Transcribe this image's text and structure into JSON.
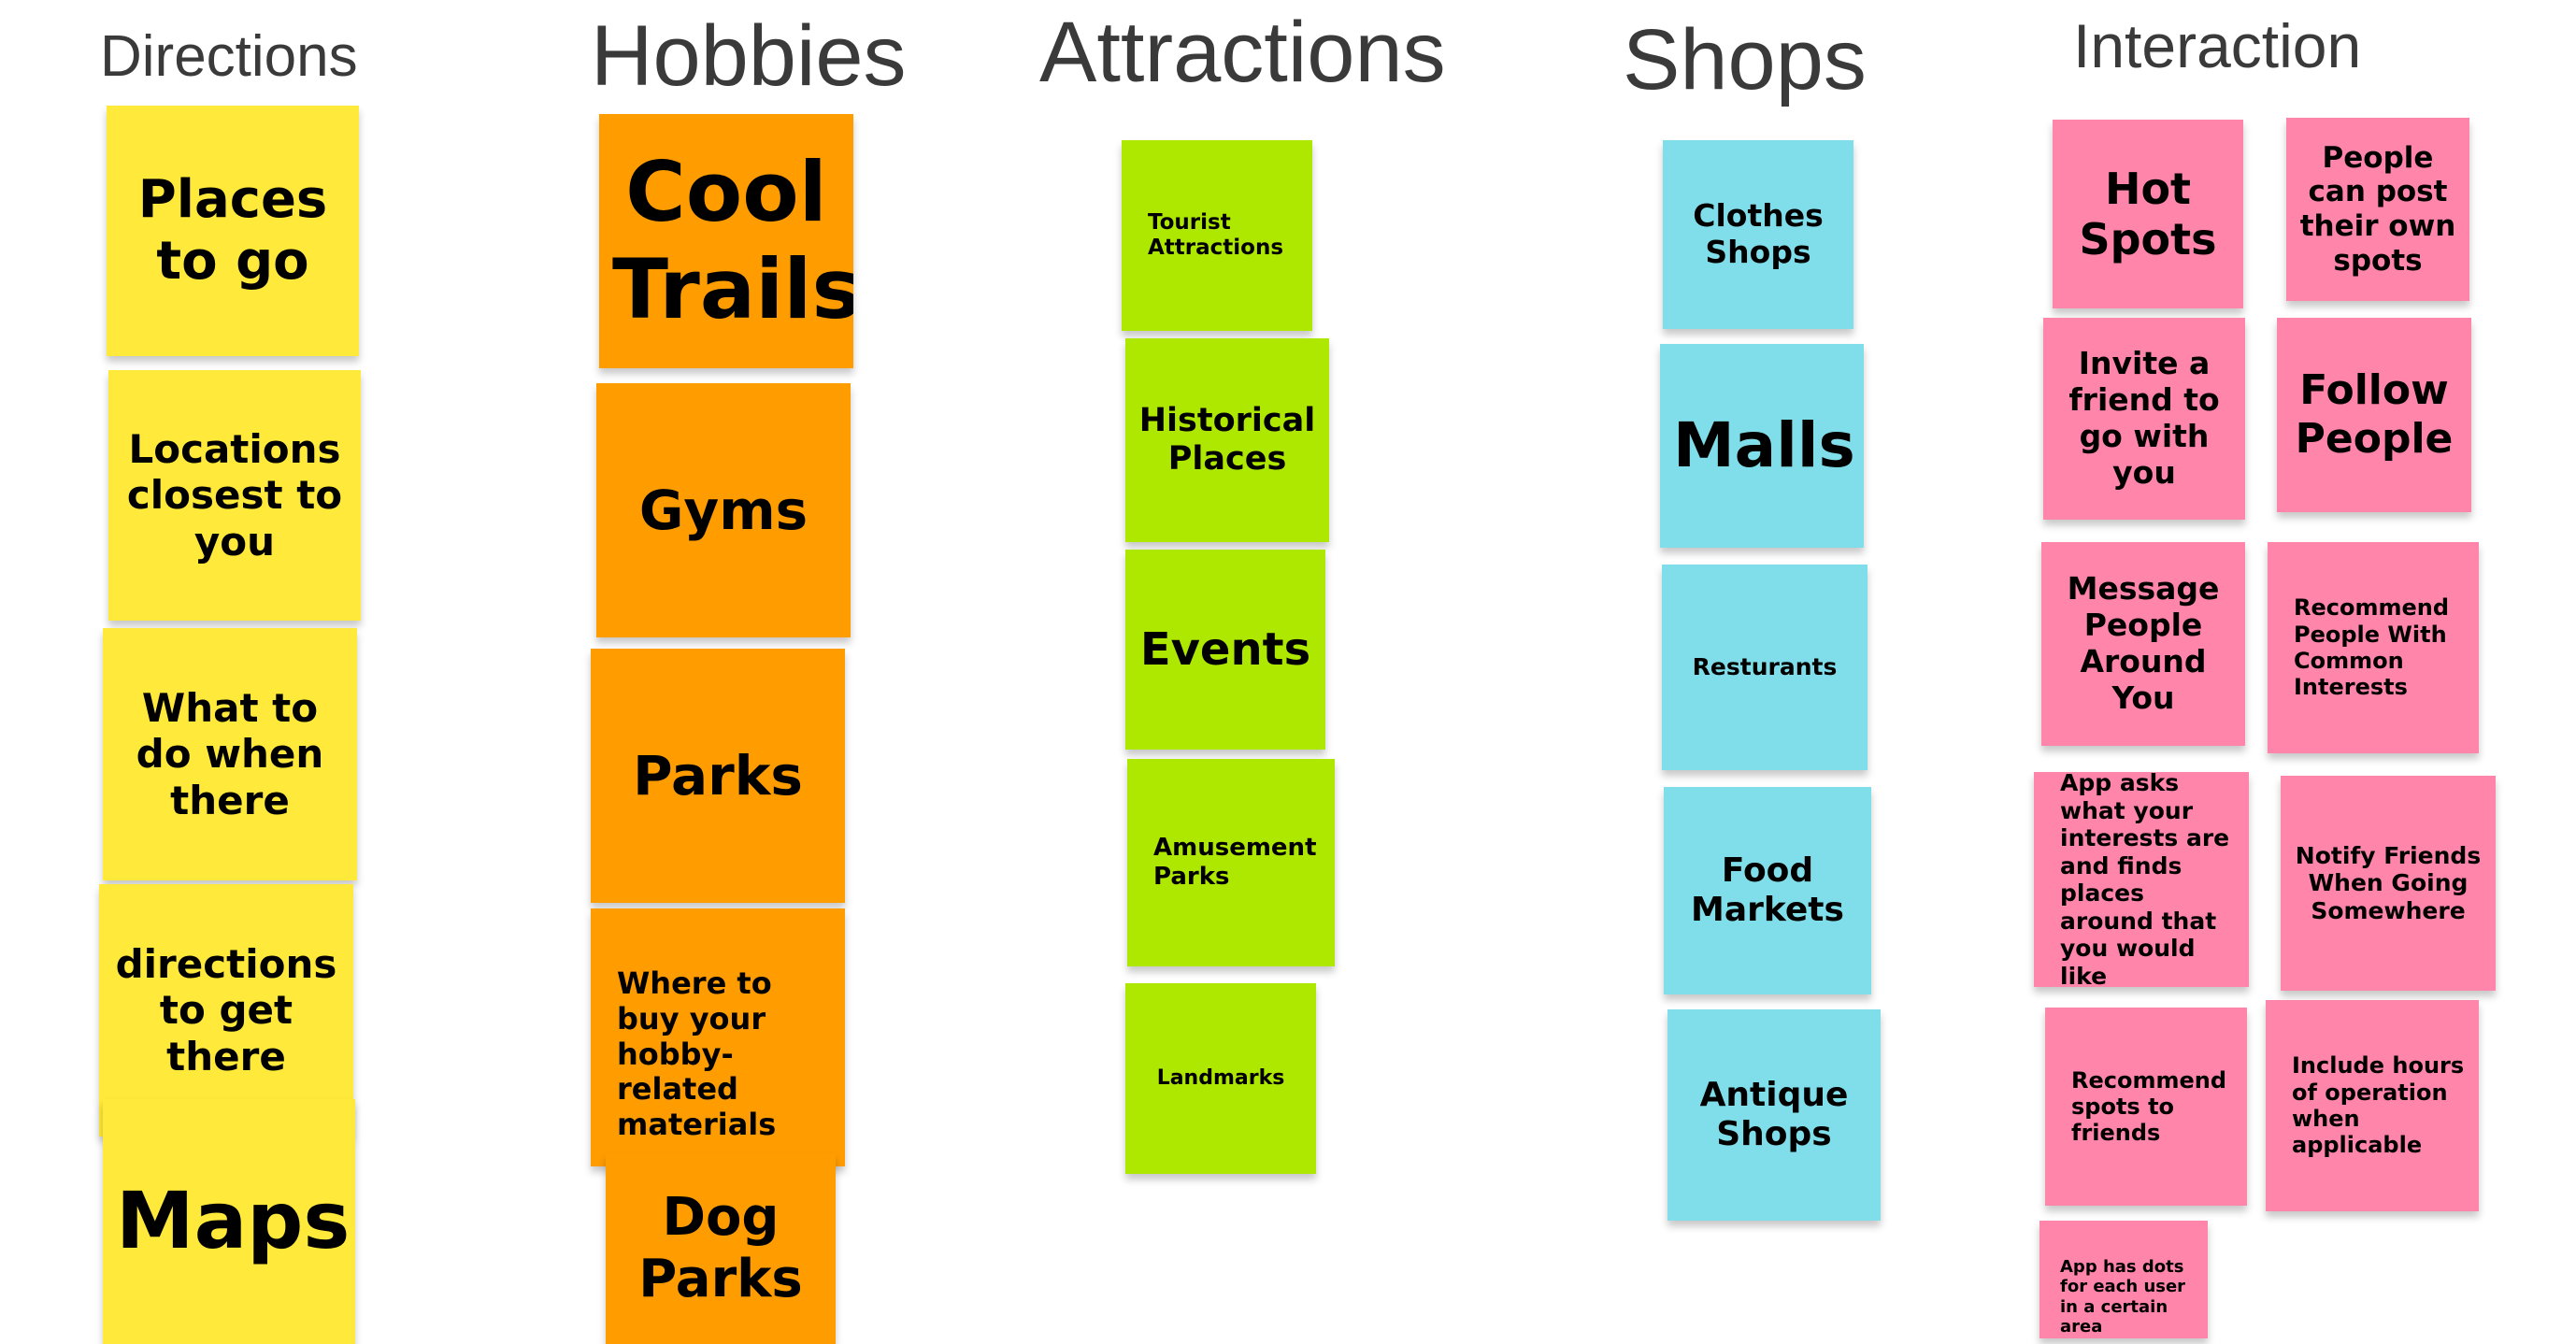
{
  "colors": {
    "directions": "#FFE93B",
    "hobbies": "#FF9C00",
    "attractions": "#AEE800",
    "shops": "#80DEEA",
    "interaction": "#FF85AA"
  },
  "columns": {
    "directions": {
      "title": "Directions",
      "notes": [
        "Places to go",
        "Locations closest to you",
        "What to do when there",
        "directions to get there",
        "Maps"
      ]
    },
    "hobbies": {
      "title": "Hobbies",
      "notes": [
        "Cool Trails",
        "Gyms",
        "Parks",
        "Where to buy your hobby-related materials",
        "Dog Parks"
      ]
    },
    "attractions": {
      "title": "Attractions",
      "notes": [
        "Tourist Attractions",
        "Historical Places",
        "Events",
        "Amusement Parks",
        "Landmarks"
      ]
    },
    "shops": {
      "title": "Shops",
      "notes": [
        "Clothes Shops",
        "Malls",
        "Resturants",
        "Food Markets",
        "Antique Shops"
      ]
    },
    "interaction": {
      "title": "Interaction",
      "notes": [
        "Hot Spots",
        "People can post their own spots",
        "Invite a friend to go with you",
        "Follow People",
        "Message People Around You",
        "Recommend People With Common Interests",
        "App asks what your interests are and finds places around that you would like",
        "Notify Friends When Going Somewhere",
        "Recommend spots to friends",
        "Include hours of operation when applicable",
        "App has dots for each user in a certain area"
      ]
    }
  }
}
